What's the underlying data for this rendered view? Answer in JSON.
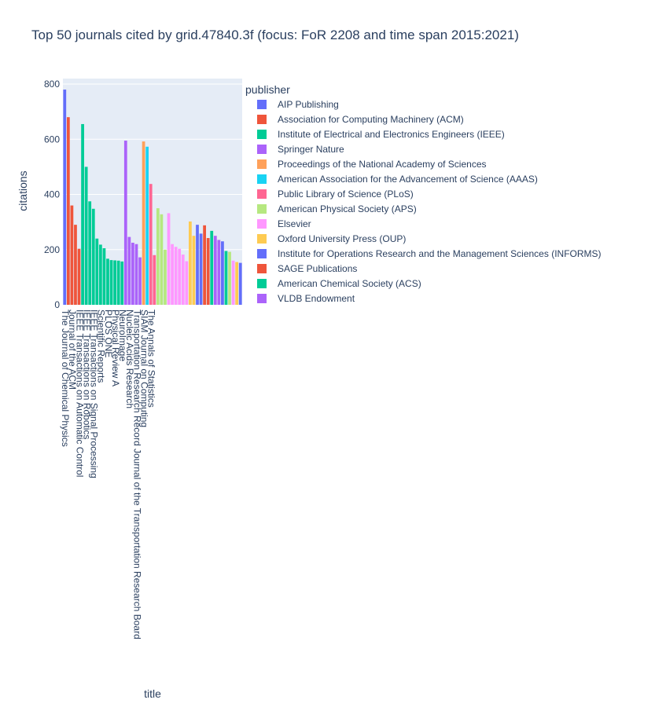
{
  "chart_data": {
    "type": "bar",
    "title": "Top 50 journals cited by grid.47840.3f (focus: FoR 2208 and time span 2015:2021)",
    "xlabel": "title",
    "ylabel": "citations",
    "ylim": [
      0,
      820
    ],
    "yticks": [
      0,
      200,
      400,
      600,
      800
    ],
    "legend_title": "publisher",
    "legend_position": "right",
    "publishers": [
      {
        "name": "AIP Publishing",
        "color": "#636efa"
      },
      {
        "name": "Association for Computing Machinery (ACM)",
        "color": "#EF553B"
      },
      {
        "name": "Institute of Electrical and Electronics Engineers (IEEE)",
        "color": "#00cc96"
      },
      {
        "name": "Springer Nature",
        "color": "#ab63fa"
      },
      {
        "name": "Proceedings of the National Academy of Sciences",
        "color": "#FFA15A"
      },
      {
        "name": "American Association for the Advancement of Science (AAAS)",
        "color": "#19d3f3"
      },
      {
        "name": "Public Library of Science (PLoS)",
        "color": "#FF6692"
      },
      {
        "name": "American Physical Society (APS)",
        "color": "#B6E880"
      },
      {
        "name": "Elsevier",
        "color": "#FF97FF"
      },
      {
        "name": "Oxford University Press (OUP)",
        "color": "#FECB52"
      },
      {
        "name": "Institute for Operations Research and the Management Sciences (INFORMS)",
        "color": "#636efa"
      },
      {
        "name": "SAGE Publications",
        "color": "#EF553B"
      },
      {
        "name": "American Chemical Society (ACS)",
        "color": "#00cc96"
      },
      {
        "name": "VLDB Endowment",
        "color": "#ab63fa"
      }
    ],
    "bars": [
      {
        "p": 0,
        "v": 780
      },
      {
        "p": 1,
        "v": 680
      },
      {
        "p": 1,
        "v": 360
      },
      {
        "p": 1,
        "v": 290
      },
      {
        "p": 1,
        "v": 203
      },
      {
        "p": 2,
        "v": 655
      },
      {
        "p": 2,
        "v": 500
      },
      {
        "p": 2,
        "v": 375
      },
      {
        "p": 2,
        "v": 348
      },
      {
        "p": 2,
        "v": 240
      },
      {
        "p": 2,
        "v": 218
      },
      {
        "p": 2,
        "v": 205
      },
      {
        "p": 2,
        "v": 167
      },
      {
        "p": 2,
        "v": 162
      },
      {
        "p": 2,
        "v": 161
      },
      {
        "p": 2,
        "v": 160
      },
      {
        "p": 2,
        "v": 157
      },
      {
        "p": 3,
        "v": 595
      },
      {
        "p": 3,
        "v": 246
      },
      {
        "p": 3,
        "v": 225
      },
      {
        "p": 3,
        "v": 220
      },
      {
        "p": 3,
        "v": 172
      },
      {
        "p": 4,
        "v": 592
      },
      {
        "p": 5,
        "v": 573
      },
      {
        "p": 6,
        "v": 438
      },
      {
        "p": 6,
        "v": 180
      },
      {
        "p": 7,
        "v": 350
      },
      {
        "p": 7,
        "v": 328
      },
      {
        "p": 7,
        "v": 200
      },
      {
        "p": 8,
        "v": 332
      },
      {
        "p": 8,
        "v": 220
      },
      {
        "p": 8,
        "v": 210
      },
      {
        "p": 8,
        "v": 203
      },
      {
        "p": 8,
        "v": 182
      },
      {
        "p": 8,
        "v": 158
      },
      {
        "p": 9,
        "v": 302
      },
      {
        "p": 9,
        "v": 250
      },
      {
        "p": 10,
        "v": 290
      },
      {
        "p": 10,
        "v": 258
      },
      {
        "p": 11,
        "v": 288
      },
      {
        "p": 11,
        "v": 242
      },
      {
        "p": 12,
        "v": 268
      },
      {
        "p": 13,
        "v": 250
      },
      {
        "p": 3,
        "v": 235
      },
      {
        "p": 0,
        "v": 230
      },
      {
        "p": 2,
        "v": 195
      },
      {
        "p": 7,
        "v": 192
      },
      {
        "p": 8,
        "v": 160
      },
      {
        "p": 9,
        "v": 155
      },
      {
        "p": 10,
        "v": 152
      }
    ],
    "tick_labels": [
      {
        "i": 0,
        "text": "The Journal of Chemical Physics"
      },
      {
        "i": 2,
        "text": "Journal of the ACM"
      },
      {
        "i": 4,
        "text": "IEEE Transactions on Automatic Control"
      },
      {
        "i": 6,
        "text": "IEEE Transactions on Robotics"
      },
      {
        "i": 8,
        "text": "IEEE Transactions on Signal Processing"
      },
      {
        "i": 10,
        "text": "Scientific Reports"
      },
      {
        "i": 12,
        "text": "PLOS ONE"
      },
      {
        "i": 14,
        "text": "Physical Review A"
      },
      {
        "i": 16,
        "text": "NeuroImage"
      },
      {
        "i": 18,
        "text": "Nucleic Acids Research"
      },
      {
        "i": 20,
        "text": "Transportation Research Record Journal of the Transportation Research Board"
      },
      {
        "i": 22,
        "text": "SIAM Journal on Computing"
      },
      {
        "i": 24,
        "text": "The Annals of Statistics"
      }
    ]
  }
}
